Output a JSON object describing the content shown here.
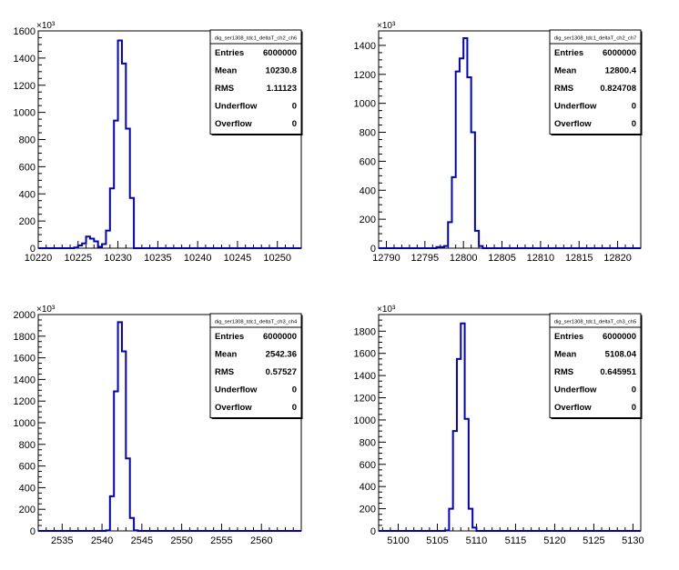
{
  "chart_data": [
    {
      "type": "histogram",
      "title": "",
      "exponent_label": "×10³",
      "xlim": [
        10220,
        10253
      ],
      "ylim": [
        0,
        1600
      ],
      "xticks": [
        "10220",
        "10225",
        "10230",
        "10235",
        "10240",
        "10245",
        "10250"
      ],
      "yticks": [
        "0",
        "200",
        "400",
        "600",
        "800",
        "1000",
        "1200",
        "1400",
        "1600"
      ],
      "bin_width": 0.5,
      "bins_start": 10224.5,
      "values": [
        5,
        20,
        35,
        85,
        70,
        50,
        10,
        30,
        130,
        440,
        940,
        1530,
        1360,
        880,
        370,
        0
      ],
      "stats": {
        "name": "dig_ser1308_tdc1_deltaT_ch2_ch6",
        "rows": [
          {
            "label": "Entries",
            "value": "6000000"
          },
          {
            "label": "Mean",
            "value": "10230.8"
          },
          {
            "label": "RMS",
            "value": "1.11123"
          },
          {
            "label": "Underflow",
            "value": "0"
          },
          {
            "label": "Overflow",
            "value": "0"
          }
        ]
      }
    },
    {
      "type": "histogram",
      "title": "",
      "exponent_label": "×10³",
      "xlim": [
        12789,
        12823
      ],
      "ylim": [
        0,
        1500
      ],
      "xticks": [
        "12790",
        "12795",
        "12800",
        "12805",
        "12810",
        "12815",
        "12820"
      ],
      "yticks": [
        "0",
        "200",
        "400",
        "600",
        "800",
        "1000",
        "1200",
        "1400"
      ],
      "bin_width": 0.5,
      "bins_start": 12796.5,
      "values": [
        8,
        8,
        15,
        180,
        490,
        1220,
        1310,
        1450,
        1180,
        800,
        120,
        15
      ],
      "stats": {
        "name": "dig_ser1308_tdc1_deltaT_ch2_ch7",
        "rows": [
          {
            "label": "Entries",
            "value": "6000000"
          },
          {
            "label": "Mean",
            "value": "12800.4"
          },
          {
            "label": "RMS",
            "value": "0.824708"
          },
          {
            "label": "Underflow",
            "value": "0"
          },
          {
            "label": "Overflow",
            "value": "0"
          }
        ]
      }
    },
    {
      "type": "histogram",
      "title": "",
      "exponent_label": "×10³",
      "xlim": [
        2532,
        2565
      ],
      "ylim": [
        0,
        2000
      ],
      "xticks": [
        "2535",
        "2540",
        "2545",
        "2550",
        "2555",
        "2560"
      ],
      "yticks": [
        "0",
        "200",
        "400",
        "600",
        "800",
        "1000",
        "1200",
        "1400",
        "1600",
        "1800",
        "2000"
      ],
      "bin_width": 0.5,
      "bins_start": 2540.5,
      "values": [
        5,
        320,
        1290,
        1930,
        1660,
        670,
        120,
        5
      ],
      "stats": {
        "name": "dig_ser1308_tdc1_deltaT_ch3_ch4",
        "rows": [
          {
            "label": "Entries",
            "value": "6000000"
          },
          {
            "label": "Mean",
            "value": "2542.36"
          },
          {
            "label": "RMS",
            "value": "0.57527"
          },
          {
            "label": "Underflow",
            "value": "0"
          },
          {
            "label": "Overflow",
            "value": "0"
          }
        ]
      }
    },
    {
      "type": "histogram",
      "title": "",
      "exponent_label": "×10³",
      "xlim": [
        5097.5,
        5131
      ],
      "ylim": [
        0,
        1950
      ],
      "xticks": [
        "5100",
        "5105",
        "5110",
        "5115",
        "5120",
        "5125",
        "5130"
      ],
      "yticks": [
        "0",
        "200",
        "400",
        "600",
        "800",
        "1000",
        "1200",
        "1400",
        "1600",
        "1800"
      ],
      "bin_width": 0.5,
      "bins_start": 5106,
      "values": [
        5,
        200,
        900,
        1550,
        1870,
        1010,
        200,
        30
      ],
      "stats": {
        "name": "dig_ser1308_tdc1_deltaT_ch3_ch5",
        "rows": [
          {
            "label": "Entries",
            "value": "6000000"
          },
          {
            "label": "Mean",
            "value": "5108.04"
          },
          {
            "label": "RMS",
            "value": "0.645951"
          },
          {
            "label": "Underflow",
            "value": "0"
          },
          {
            "label": "Overflow",
            "value": "0"
          }
        ]
      }
    }
  ]
}
